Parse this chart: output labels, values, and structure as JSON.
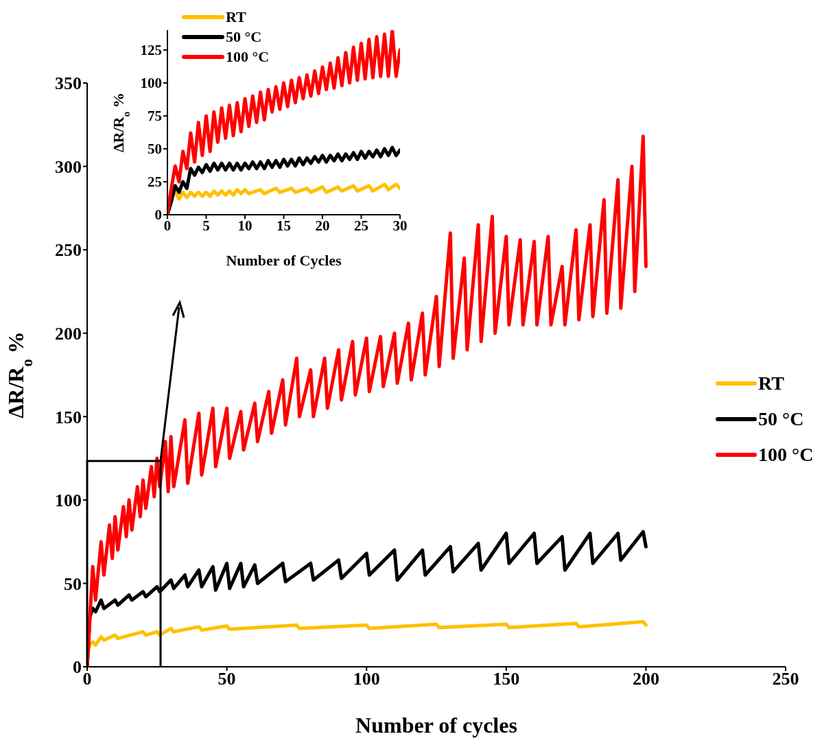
{
  "chart_data": [
    {
      "type": "line",
      "xlabel": "Number of cycles",
      "ylabel": "ΔR/R$_{o}$ %",
      "xlim": [
        0,
        250
      ],
      "xticks": [
        0,
        50,
        100,
        150,
        200,
        250
      ],
      "ylim": [
        0,
        350
      ],
      "yticks": [
        0,
        50,
        100,
        150,
        200,
        250,
        300,
        350
      ],
      "legend": "right",
      "marker": "none",
      "line_style": "solid",
      "series": [
        {
          "name": "RT",
          "color": "#ffc000",
          "x": [
            0,
            1,
            2,
            3,
            5,
            6,
            10,
            11,
            20,
            21,
            25,
            26,
            30,
            31,
            40,
            41,
            50,
            51,
            75,
            76,
            100,
            101,
            125,
            126,
            150,
            151,
            175,
            176,
            199,
            200
          ],
          "values": [
            8,
            13,
            15,
            13,
            18,
            16,
            19,
            17,
            21,
            19,
            21,
            19,
            23,
            21,
            24,
            22,
            24.5,
            22.5,
            25,
            23,
            25,
            23,
            25.5,
            23.5,
            25.5,
            23.5,
            26,
            24,
            27,
            25
          ]
        },
        {
          "name": "50 °C",
          "color": "#000000",
          "x": [
            0,
            1,
            2,
            3,
            5,
            6,
            10,
            11,
            15,
            16,
            20,
            21,
            25,
            26,
            30,
            31,
            35,
            36,
            40,
            41,
            45,
            46,
            50,
            51,
            55,
            56,
            60,
            61,
            70,
            71,
            80,
            81,
            90,
            91,
            100,
            101,
            110,
            111,
            120,
            121,
            130,
            131,
            140,
            141,
            150,
            151,
            160,
            161,
            170,
            171,
            180,
            181,
            190,
            191,
            199,
            200
          ],
          "values": [
            0,
            30,
            35,
            33,
            40,
            35,
            40,
            37,
            43,
            40,
            45,
            42,
            48,
            45,
            52,
            47,
            55,
            48,
            58,
            48,
            60,
            46,
            62,
            47,
            62,
            48,
            61,
            50,
            62,
            51,
            62,
            52,
            64,
            53,
            68,
            55,
            70,
            52,
            70,
            55,
            72,
            57,
            74,
            58,
            80,
            62,
            80,
            62,
            78,
            58,
            80,
            62,
            80,
            64,
            81,
            72
          ]
        },
        {
          "name": "100 °C",
          "color": "#ff0000",
          "x": [
            0,
            1,
            2,
            3,
            5,
            6,
            8,
            9,
            10,
            11,
            13,
            14,
            15,
            16,
            18,
            19,
            20,
            21,
            23,
            24,
            25,
            26,
            28,
            29,
            30,
            31,
            35,
            36,
            40,
            41,
            45,
            46,
            50,
            51,
            55,
            56,
            60,
            61,
            65,
            66,
            70,
            71,
            75,
            76,
            80,
            81,
            85,
            86,
            90,
            91,
            95,
            96,
            100,
            101,
            105,
            106,
            110,
            111,
            115,
            116,
            120,
            121,
            125,
            126,
            130,
            131,
            135,
            136,
            140,
            141,
            145,
            146,
            150,
            151,
            155,
            156,
            160,
            161,
            165,
            166,
            170,
            171,
            175,
            176,
            180,
            181,
            185,
            186,
            190,
            191,
            195,
            196,
            199,
            200
          ],
          "values": [
            0,
            30,
            60,
            40,
            75,
            55,
            85,
            65,
            90,
            70,
            96,
            78,
            100,
            82,
            108,
            90,
            112,
            95,
            120,
            102,
            125,
            108,
            135,
            105,
            138,
            108,
            148,
            110,
            152,
            115,
            155,
            120,
            155,
            125,
            153,
            130,
            158,
            135,
            165,
            140,
            172,
            145,
            185,
            150,
            178,
            150,
            185,
            155,
            190,
            160,
            195,
            163,
            197,
            165,
            198,
            168,
            200,
            170,
            206,
            172,
            212,
            175,
            222,
            180,
            260,
            185,
            245,
            190,
            265,
            195,
            270,
            200,
            258,
            205,
            256,
            205,
            255,
            205,
            258,
            205,
            240,
            205,
            262,
            208,
            265,
            210,
            280,
            212,
            292,
            215,
            300,
            225,
            318,
            240
          ]
        }
      ]
    },
    {
      "type": "line",
      "xlabel": "Number of Cycles",
      "ylabel": "ΔR/R$_{o}$ %",
      "xlim": [
        0,
        30
      ],
      "xticks": [
        0,
        5,
        10,
        15,
        20,
        25,
        30
      ],
      "ylim": [
        0,
        140
      ],
      "yticks": [
        0,
        25,
        50,
        75,
        100,
        125
      ],
      "legend": "top left",
      "marker": "none",
      "line_style": "solid",
      "series": [
        {
          "name": "RT",
          "color": "#ffc000",
          "x": [
            0,
            0.5,
            1,
            1.5,
            2,
            2.5,
            3,
            3.5,
            4,
            4.5,
            5,
            5.5,
            6,
            6.5,
            7,
            7.5,
            8,
            8.5,
            9,
            9.5,
            10,
            10.5,
            12,
            12.5,
            14,
            14.5,
            16,
            16.5,
            18,
            18.5,
            20,
            20.5,
            22,
            22.5,
            24,
            24.5,
            26,
            26.5,
            28,
            28.5,
            29.5,
            30
          ],
          "values": [
            0,
            15,
            17,
            12,
            17,
            13,
            17,
            14,
            17,
            14,
            17,
            14,
            18,
            15,
            18,
            15,
            18,
            15,
            19,
            16,
            19,
            16,
            19,
            16,
            20,
            17,
            20,
            17,
            20,
            17,
            21,
            17,
            21,
            18,
            22,
            18,
            22,
            18,
            23,
            19,
            23,
            20
          ]
        },
        {
          "name": "50 °C",
          "color": "#000000",
          "x": [
            0,
            0.5,
            1,
            1.5,
            2,
            2.5,
            3,
            3.5,
            4,
            4.5,
            5,
            5.5,
            6,
            6.5,
            7,
            7.5,
            8,
            8.5,
            9,
            9.5,
            10,
            10.5,
            11,
            11.5,
            12,
            12.5,
            13,
            13.5,
            14,
            14.5,
            15,
            15.5,
            16,
            16.5,
            17,
            17.5,
            18,
            18.5,
            19,
            19.5,
            20,
            20.5,
            21,
            21.5,
            22,
            22.5,
            23,
            23.5,
            24,
            24.5,
            25,
            25.5,
            26,
            26.5,
            27,
            27.5,
            28,
            28.5,
            29,
            29.5,
            30
          ],
          "values": [
            0,
            10,
            22,
            17,
            25,
            20,
            35,
            30,
            36,
            32,
            38,
            33,
            39,
            34,
            39,
            34,
            39,
            34,
            39,
            34,
            39,
            35,
            40,
            35,
            40,
            35,
            41,
            36,
            41,
            36,
            42,
            37,
            42,
            37,
            43,
            38,
            43,
            39,
            44,
            40,
            45,
            40,
            45,
            41,
            46,
            41,
            46,
            42,
            47,
            42,
            48,
            43,
            48,
            44,
            49,
            44,
            50,
            45,
            51,
            45,
            49
          ]
        },
        {
          "name": "100 °C",
          "color": "#ff0000",
          "x": [
            0,
            0.5,
            1,
            1.5,
            2,
            2.5,
            3,
            3.5,
            4,
            4.5,
            5,
            5.5,
            6,
            6.5,
            7,
            7.5,
            8,
            8.5,
            9,
            9.5,
            10,
            10.5,
            11,
            11.5,
            12,
            12.5,
            13,
            13.5,
            14,
            14.5,
            15,
            15.5,
            16,
            16.5,
            17,
            17.5,
            18,
            18.5,
            19,
            19.5,
            20,
            20.5,
            21,
            21.5,
            22,
            22.5,
            23,
            23.5,
            24,
            24.5,
            25,
            25.5,
            26,
            26.5,
            27,
            27.5,
            28,
            28.5,
            29,
            29.5,
            30
          ],
          "values": [
            0,
            20,
            37,
            25,
            48,
            35,
            62,
            40,
            70,
            45,
            75,
            48,
            78,
            55,
            81,
            58,
            83,
            60,
            85,
            63,
            88,
            67,
            90,
            70,
            93,
            72,
            95,
            78,
            97,
            80,
            100,
            82,
            102,
            85,
            104,
            88,
            106,
            90,
            109,
            92,
            112,
            95,
            115,
            96,
            119,
            98,
            123,
            100,
            127,
            102,
            130,
            103,
            133,
            104,
            135,
            105,
            137,
            105,
            140,
            105,
            125
          ]
        }
      ]
    }
  ]
}
